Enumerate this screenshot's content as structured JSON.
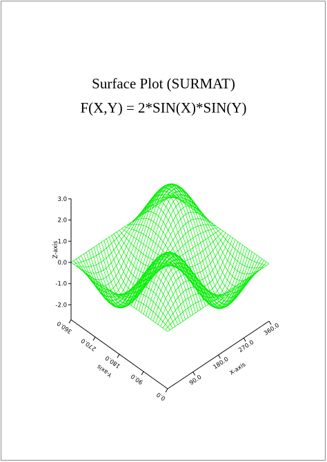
{
  "chart_data": {
    "type": "surface",
    "title": "Surface Plot (SURMAT)",
    "subtitle": "F(X,Y) = 2*SIN(X)*SIN(Y)",
    "function": "2*SIN(X)*SIN(Y)",
    "xlabel": "X-axis",
    "ylabel": "Y-axis",
    "zlabel": "Z-axis",
    "x_range": [
      0,
      360
    ],
    "y_range": [
      0,
      360
    ],
    "z_range": [
      -3,
      3
    ],
    "x_ticks": [
      "90.0",
      "180.0",
      "270.0",
      "360.0"
    ],
    "y_ticks": [
      "0.0",
      "90.0",
      "180.0",
      "270.0",
      "360.0"
    ],
    "z_ticks": [
      "-2.0",
      "-1.0",
      "0.0",
      "1.0",
      "2.0",
      "3.0"
    ],
    "x_tick_values": [
      90,
      180,
      270,
      360
    ],
    "y_tick_values": [
      0,
      90,
      180,
      270,
      360
    ],
    "z_tick_values": [
      -2,
      -1,
      0,
      1,
      2,
      3
    ],
    "grid_step": 9,
    "mesh_color": "#00ee00",
    "axis_color": "#000000"
  }
}
